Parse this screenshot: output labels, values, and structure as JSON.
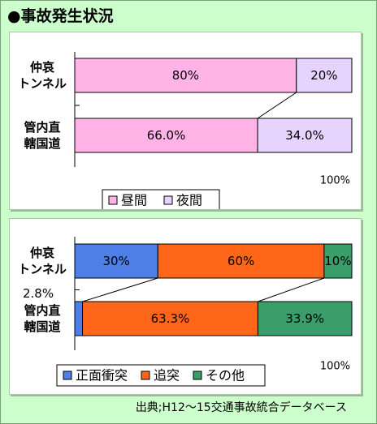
{
  "title": "●事故発生状況",
  "source": "出典;H12～15交通事故統合データベース",
  "chart_data": [
    {
      "type": "bar",
      "orientation": "horizontal",
      "stacked": "percent",
      "categories": [
        "仲哀\nトンネル",
        "管内直\n轄国道"
      ],
      "series": [
        {
          "name": "昼間",
          "color": "#ffb3e6",
          "values": [
            80,
            66.0
          ],
          "labels": [
            "80%",
            "66.0%"
          ]
        },
        {
          "name": "夜間",
          "color": "#e6d4ff",
          "values": [
            20,
            34.0
          ],
          "labels": [
            "20%",
            "34.0%"
          ]
        }
      ],
      "axis_max_label": "100%",
      "xlim": [
        0,
        100
      ],
      "legend_position": "bottom-center",
      "grid": false
    },
    {
      "type": "bar",
      "orientation": "horizontal",
      "stacked": "percent",
      "categories": [
        "仲哀\nトンネル",
        "管内直\n轄国道"
      ],
      "series": [
        {
          "name": "正面衝突",
          "color": "#4d7fe6",
          "values": [
            30,
            2.8
          ],
          "labels": [
            "30%",
            "2.8%"
          ]
        },
        {
          "name": "追突",
          "color": "#ff6619",
          "values": [
            60,
            63.3
          ],
          "labels": [
            "60%",
            "63.3%"
          ]
        },
        {
          "name": "その他",
          "color": "#3a9e6a",
          "values": [
            10,
            33.9
          ],
          "labels": [
            "10%",
            "33.9%"
          ]
        }
      ],
      "axis_max_label": "100%",
      "xlim": [
        0,
        100
      ],
      "legend_position": "bottom-center",
      "grid": false
    }
  ]
}
